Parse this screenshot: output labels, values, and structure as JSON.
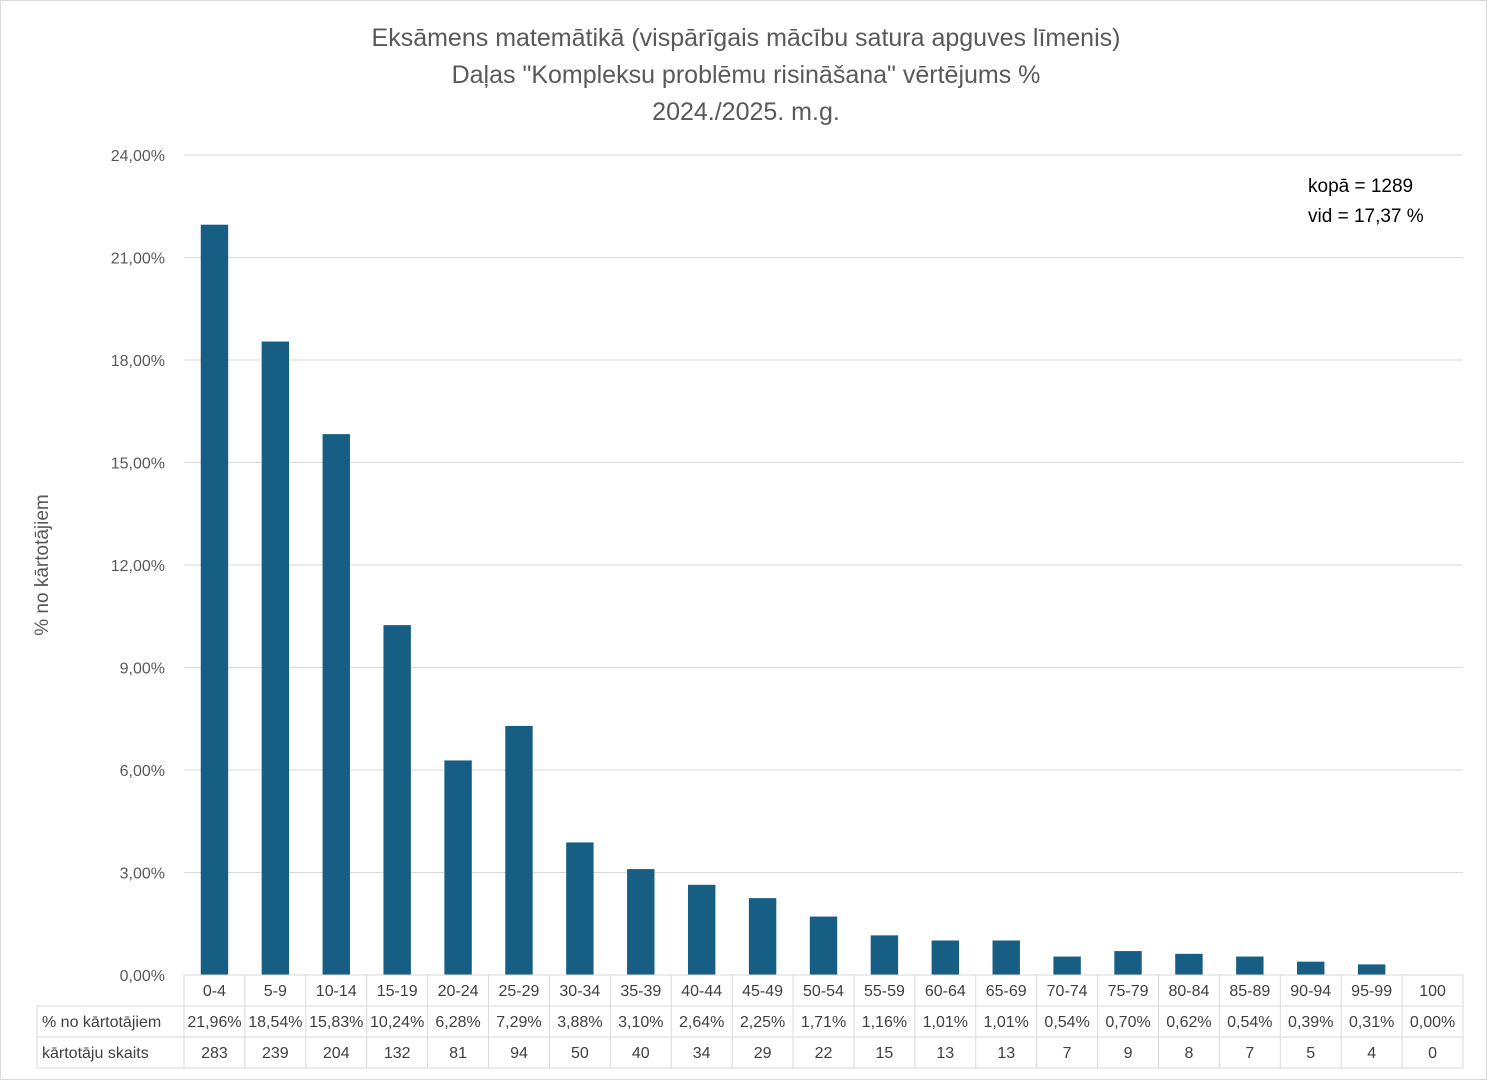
{
  "chart_data": {
    "type": "bar",
    "title_lines": [
      "Eksāmens matemātikā (vispārīgais mācību satura apguves līmenis)",
      "Daļas \"Kompleksu problēmu risināšana\" vērtējums %",
      "2024./2025. m.g."
    ],
    "ylabel": "% no kārtotājiem",
    "xlabel": "",
    "ylim": [
      0,
      24
    ],
    "yticks": [
      "0,00%",
      "3,00%",
      "6,00%",
      "9,00%",
      "12,00%",
      "15,00%",
      "18,00%",
      "21,00%",
      "24,00%"
    ],
    "grid": true,
    "bar_color": "#175E84",
    "categories": [
      "0-4",
      "5-9",
      "10-14",
      "15-19",
      "20-24",
      "25-29",
      "30-34",
      "35-39",
      "40-44",
      "45-49",
      "50-54",
      "55-59",
      "60-64",
      "65-69",
      "70-74",
      "75-79",
      "80-84",
      "85-89",
      "90-94",
      "95-99",
      "100"
    ],
    "values": [
      21.96,
      18.54,
      15.83,
      10.24,
      6.28,
      7.29,
      3.88,
      3.1,
      2.64,
      2.25,
      1.71,
      1.16,
      1.01,
      1.01,
      0.54,
      0.7,
      0.62,
      0.54,
      0.39,
      0.31,
      0.0
    ],
    "annotations": [
      "kopā = 1289",
      "vid = 17,37 %"
    ],
    "table": {
      "rows": [
        {
          "label": "% no kārtotājiem",
          "cells": [
            "21,96%",
            "18,54%",
            "15,83%",
            "10,24%",
            "6,28%",
            "7,29%",
            "3,88%",
            "3,10%",
            "2,64%",
            "2,25%",
            "1,71%",
            "1,16%",
            "1,01%",
            "1,01%",
            "0,54%",
            "0,70%",
            "0,62%",
            "0,54%",
            "0,39%",
            "0,31%",
            "0,00%"
          ]
        },
        {
          "label": "kārtotāju skaits",
          "cells": [
            "283",
            "239",
            "204",
            "132",
            "81",
            "94",
            "50",
            "40",
            "34",
            "29",
            "22",
            "15",
            "13",
            "13",
            "7",
            "9",
            "8",
            "7",
            "5",
            "4",
            "0"
          ]
        }
      ]
    }
  }
}
